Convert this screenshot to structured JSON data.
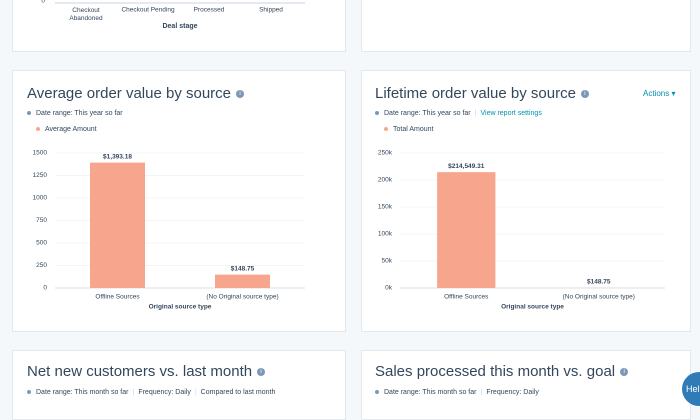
{
  "deal_stage_card": {
    "ytick": "0",
    "categories": [
      "Checkout Abandoned",
      "Checkout Pending",
      "Processed",
      "Shipped"
    ],
    "x_axis_title": "Deal stage"
  },
  "average_order_card": {
    "title": "Average order value by source",
    "date_range": "Date range: This year so far",
    "chart_data": {
      "type": "bar",
      "legend": "Average Amount",
      "color": "#f8a58e",
      "categories": [
        "Offline Sources",
        "(No Original source type)"
      ],
      "values": [
        1393.18,
        148.75
      ],
      "value_labels": [
        "$1,393.18",
        "$148.75"
      ],
      "ylim": [
        0,
        1500
      ],
      "yticks": [
        0,
        250,
        500,
        750,
        1000,
        1250,
        1500
      ],
      "x_axis_title": "Original source type"
    }
  },
  "lifetime_order_card": {
    "title": "Lifetime order value by source",
    "actions": "Actions",
    "date_range": "Date range: This year so far",
    "report_link": "View report settings",
    "chart_data": {
      "type": "bar",
      "legend": "Total Amount",
      "color": "#f8a58e",
      "categories": [
        "Offline Sources",
        "(No Original source type)"
      ],
      "values": [
        214549.31,
        148.75
      ],
      "value_labels": [
        "$214,549.31",
        "$148.75"
      ],
      "ylim": [
        0,
        250000
      ],
      "yticks": [
        {
          "value": 0,
          "label": "0k"
        },
        {
          "value": 50000,
          "label": "50k"
        },
        {
          "value": 100000,
          "label": "100k"
        },
        {
          "value": 150000,
          "label": "150k"
        },
        {
          "value": 200000,
          "label": "200k"
        },
        {
          "value": 250000,
          "label": "250k"
        }
      ],
      "x_axis_title": "Original source type"
    }
  },
  "net_new_card": {
    "title": "Net new customers vs. last month",
    "date_range": "Date range: This month so far",
    "frequency": "Frequency: Daily",
    "comparison": "Compared to last month"
  },
  "sales_card": {
    "title": "Sales processed this month vs. goal",
    "date_range": "Date range: This month so far",
    "frequency": "Frequency: Daily"
  },
  "help_button": "Hel"
}
